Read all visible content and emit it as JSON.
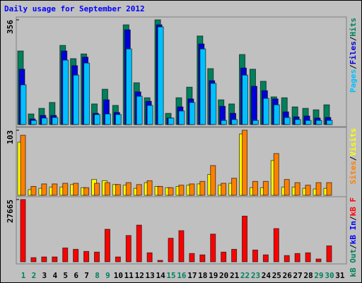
{
  "chart_data": [
    {
      "type": "bar",
      "title": "Daily usage for September 2012",
      "ylim": [
        0,
        356
      ],
      "yticks": [
        356
      ],
      "legend_separator": "/",
      "series": [
        {
          "name": "Hits",
          "color": "#00805c",
          "values": [
            250,
            36,
            55,
            75,
            269,
            224,
            240,
            70,
            120,
            65,
            339,
            142,
            91,
            356,
            38,
            91,
            127,
            301,
            190,
            84,
            70,
            238,
            188,
            147,
            94,
            91,
            60,
            55,
            50,
            67,
            null
          ]
        },
        {
          "name": "Files",
          "color": "#0000d8",
          "values": [
            188,
            19,
            31,
            31,
            250,
            200,
            229,
            38,
            84,
            41,
            322,
            111,
            79,
            339,
            22,
            60,
            87,
            274,
            149,
            62,
            38,
            192,
            130,
            115,
            87,
            43,
            26,
            29,
            22,
            24,
            null
          ]
        },
        {
          "name": "Pages",
          "color": "#00c0ff",
          "values": [
            135,
            14,
            22,
            24,
            219,
            168,
            209,
            34,
            36,
            34,
            257,
            96,
            65,
            332,
            22,
            46,
            75,
            257,
            140,
            14,
            17,
            168,
            14,
            89,
            67,
            24,
            17,
            14,
            14,
            14,
            null
          ]
        }
      ]
    },
    {
      "type": "bar",
      "ylim": [
        0,
        103
      ],
      "yticks": [
        103
      ],
      "legend_separator": "/",
      "series": [
        {
          "name": "Visits",
          "color": "#ffff00",
          "values": [
            84,
            9,
            11,
            13,
            13,
            17,
            12,
            25,
            23,
            17,
            16,
            11,
            20,
            14,
            12,
            14,
            16,
            18,
            33,
            16,
            19,
            97,
            12,
            12,
            55,
            13,
            13,
            11,
            10,
            11,
            null
          ]
        },
        {
          "name": "Sites",
          "color": "#ff8000",
          "values": [
            95,
            14,
            18,
            18,
            19,
            19,
            12,
            19,
            20,
            17,
            20,
            17,
            23,
            14,
            12,
            16,
            18,
            22,
            47,
            19,
            27,
            103,
            22,
            22,
            66,
            25,
            20,
            16,
            20,
            20,
            null
          ]
        }
      ]
    },
    {
      "type": "bar",
      "ylim": [
        0,
        27665
      ],
      "yticks": [
        27665
      ],
      "legend_separator": "/",
      "categories": [
        "1",
        "2",
        "3",
        "4",
        "5",
        "6",
        "7",
        "8",
        "9",
        "10",
        "11",
        "12",
        "13",
        "14",
        "15",
        "16",
        "17",
        "18",
        "19",
        "20",
        "21",
        "22",
        "23",
        "24",
        "25",
        "26",
        "27",
        "28",
        "29",
        "30",
        "31"
      ],
      "category_colors": [
        "#00805c",
        "#00805c",
        "#000000",
        "#000000",
        "#000000",
        "#000000",
        "#000000",
        "#00805c",
        "#00805c",
        "#000000",
        "#000000",
        "#000000",
        "#000000",
        "#000000",
        "#00805c",
        "#00805c",
        "#000000",
        "#000000",
        "#000000",
        "#000000",
        "#000000",
        "#00805c",
        "#00805c",
        "#000000",
        "#000000",
        "#000000",
        "#000000",
        "#000000",
        "#00805c",
        "#00805c",
        "#000000"
      ],
      "series": [
        {
          "name": "kB F",
          "color": "#ff0000",
          "values": [
            27665,
            1844,
            2152,
            2152,
            6148,
            5533,
            4611,
            4303,
            14447,
            2152,
            11681,
            16291,
            3996,
            615,
            10451,
            13832,
            3689,
            3074,
            12296,
            4303,
            5533,
            20288,
            5226,
            3074,
            14755,
            2767,
            3689,
            3996,
            1230,
            7070,
            null
          ]
        },
        {
          "name": "kB In",
          "color": "#0000ff",
          "values": [
            0,
            0,
            0,
            0,
            0,
            0,
            0,
            0,
            0,
            0,
            0,
            0,
            0,
            0,
            0,
            0,
            0,
            0,
            0,
            0,
            0,
            0,
            0,
            0,
            0,
            0,
            0,
            0,
            0,
            0,
            null
          ]
        },
        {
          "name": "kB Out",
          "color": "#00805c",
          "values": [
            0,
            0,
            0,
            0,
            0,
            0,
            0,
            0,
            0,
            0,
            0,
            0,
            0,
            0,
            0,
            0,
            0,
            0,
            0,
            0,
            0,
            0,
            0,
            0,
            0,
            0,
            0,
            0,
            0,
            0,
            null
          ]
        }
      ]
    }
  ]
}
